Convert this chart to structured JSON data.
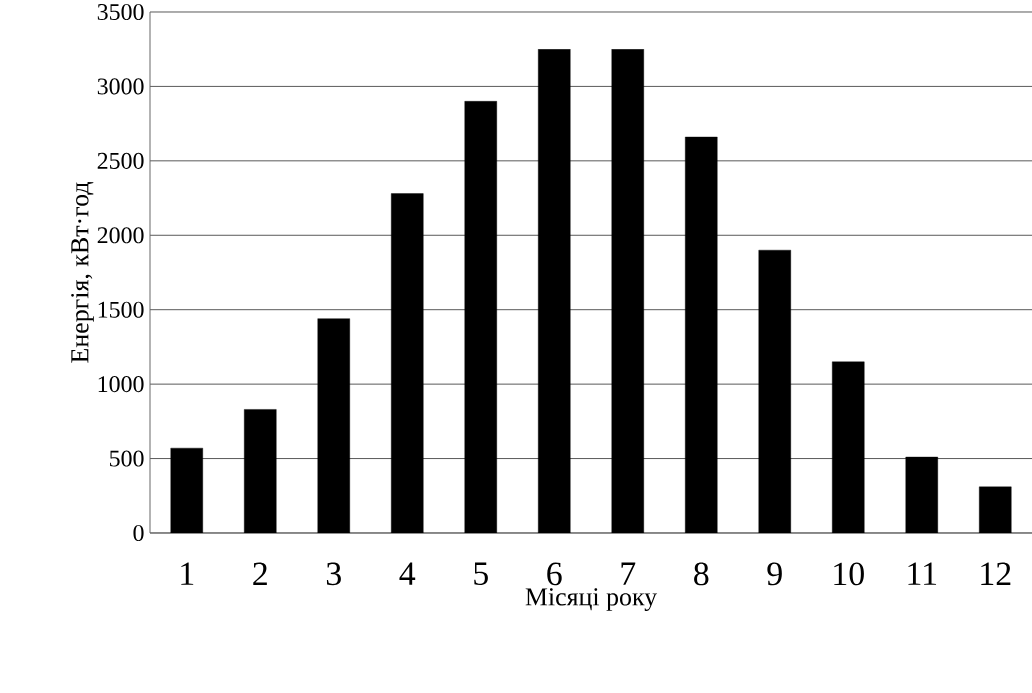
{
  "chart_data": {
    "type": "bar",
    "xlabel": "Місяці року",
    "ylabel": "Енергія, кВт·год",
    "categories": [
      "1",
      "2",
      "3",
      "4",
      "5",
      "6",
      "7",
      "8",
      "9",
      "10",
      "11",
      "12"
    ],
    "values": [
      570,
      830,
      1440,
      2280,
      2900,
      3250,
      3250,
      2660,
      1900,
      1150,
      510,
      310
    ],
    "color": "#000000",
    "ylim": [
      0,
      3500
    ],
    "yticks": [
      0,
      500,
      1000,
      1500,
      2000,
      2500,
      3000,
      3500
    ],
    "grid": "y"
  }
}
